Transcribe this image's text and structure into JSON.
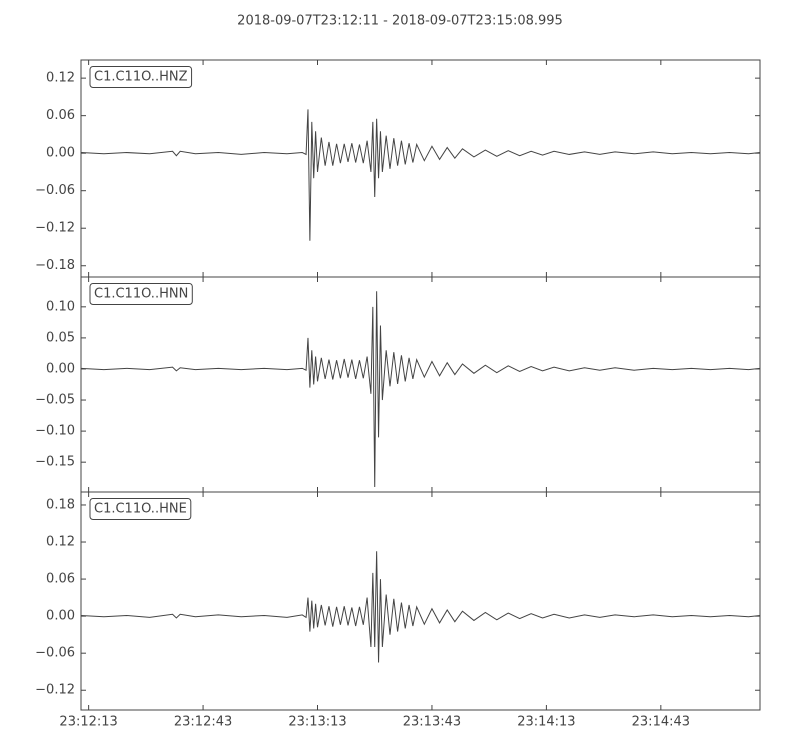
{
  "chart_data": {
    "type": "line",
    "title": "2018-09-07T23:12:11  -  2018-09-07T23:15:08.995",
    "x": [
      0,
      6,
      12,
      18,
      24,
      25,
      26,
      30,
      36,
      42,
      48,
      54,
      58,
      59,
      59.5,
      60,
      60.5,
      61,
      61.5,
      62,
      63,
      64,
      65,
      66,
      67,
      68,
      69,
      70,
      71,
      72,
      73,
      74,
      75,
      76,
      76.5,
      77,
      77.5,
      78,
      78.5,
      79,
      80,
      81,
      82,
      83,
      84,
      85,
      86,
      87,
      88,
      90,
      92,
      94,
      96,
      98,
      100,
      103,
      106,
      109,
      112,
      115,
      118,
      121,
      124,
      128,
      132,
      136,
      140,
      145,
      150,
      155,
      160,
      165,
      170,
      175,
      178
    ],
    "xlim": [
      0,
      177.995
    ],
    "xticks": [
      {
        "value": 2,
        "label": "23:12:13"
      },
      {
        "value": 32,
        "label": "23:12:43"
      },
      {
        "value": 62,
        "label": "23:13:13"
      },
      {
        "value": 92,
        "label": "23:13:43"
      },
      {
        "value": 122,
        "label": "23:14:13"
      },
      {
        "value": 152,
        "label": "23:14:43"
      }
    ],
    "panels": [
      {
        "label": "C1.C11O..HNZ",
        "color": "#444444",
        "ylim": [
          -0.198,
          0.149
        ],
        "yticks": [
          {
            "value": 0.12,
            "label": "0.12"
          },
          {
            "value": 0.06,
            "label": "0.06"
          },
          {
            "value": 0,
            "label": "0.00"
          },
          {
            "value": -0.06,
            "label": "−0.06"
          },
          {
            "value": -0.12,
            "label": "−0.12"
          },
          {
            "value": -0.18,
            "label": "−0.18"
          }
        ],
        "values": [
          0.001,
          -0.001,
          0.001,
          -0.001,
          0.003,
          -0.004,
          0.003,
          -0.001,
          0.001,
          -0.002,
          0.001,
          -0.001,
          0.001,
          -0.002,
          0.07,
          -0.14,
          0.05,
          -0.04,
          0.035,
          -0.03,
          0.025,
          -0.02,
          0.018,
          -0.02,
          0.015,
          -0.016,
          0.015,
          -0.014,
          0.016,
          -0.015,
          0.014,
          -0.016,
          0.02,
          -0.03,
          0.05,
          -0.07,
          0.055,
          -0.04,
          0.035,
          -0.03,
          0.028,
          -0.025,
          0.024,
          -0.02,
          0.02,
          -0.018,
          0.016,
          -0.015,
          0.014,
          -0.012,
          0.011,
          -0.01,
          0.009,
          -0.008,
          0.007,
          -0.006,
          0.005,
          -0.005,
          0.004,
          -0.004,
          0.003,
          -0.003,
          0.003,
          -0.002,
          0.002,
          -0.002,
          0.002,
          -0.001,
          0.002,
          -0.001,
          0.001,
          -0.001,
          0.001,
          -0.001,
          0.001
        ]
      },
      {
        "label": "C1.C11O..HNN",
        "color": "#444444",
        "ylim": [
          -0.198,
          0.148
        ],
        "yticks": [
          {
            "value": 0.1,
            "label": "0.10"
          },
          {
            "value": 0.05,
            "label": "0.05"
          },
          {
            "value": 0,
            "label": "0.00"
          },
          {
            "value": -0.05,
            "label": "−0.05"
          },
          {
            "value": -0.1,
            "label": "−0.10"
          },
          {
            "value": -0.15,
            "label": "−0.15"
          }
        ],
        "values": [
          0.001,
          -0.001,
          0.001,
          -0.001,
          0.003,
          -0.003,
          0.002,
          -0.001,
          0.001,
          -0.001,
          0.001,
          -0.001,
          0.001,
          -0.002,
          0.05,
          -0.03,
          0.03,
          -0.025,
          0.02,
          -0.02,
          0.018,
          -0.016,
          0.015,
          -0.017,
          0.014,
          -0.015,
          0.016,
          -0.014,
          0.015,
          -0.016,
          0.014,
          -0.015,
          0.02,
          -0.04,
          0.1,
          -0.19,
          0.125,
          -0.11,
          0.07,
          -0.05,
          0.03,
          -0.028,
          0.027,
          -0.024,
          0.022,
          -0.02,
          0.018,
          -0.016,
          0.015,
          -0.013,
          0.012,
          -0.011,
          0.01,
          -0.009,
          0.008,
          -0.007,
          0.006,
          -0.006,
          0.005,
          -0.004,
          0.004,
          -0.003,
          0.003,
          -0.003,
          0.002,
          -0.002,
          0.002,
          -0.002,
          0.001,
          -0.001,
          0.001,
          -0.001,
          0.001,
          -0.001,
          0.001
        ]
      },
      {
        "label": "C1.C11O..HNE",
        "color": "#444444",
        "ylim": [
          -0.152,
          0.201
        ],
        "yticks": [
          {
            "value": 0.18,
            "label": "0.18"
          },
          {
            "value": 0.12,
            "label": "0.12"
          },
          {
            "value": 0.06,
            "label": "0.06"
          },
          {
            "value": 0,
            "label": "0.00"
          },
          {
            "value": -0.06,
            "label": "−0.06"
          },
          {
            "value": -0.12,
            "label": "−0.12"
          }
        ],
        "values": [
          0.001,
          -0.001,
          0.001,
          -0.002,
          0.003,
          -0.003,
          0.003,
          -0.001,
          0.002,
          -0.001,
          0.001,
          -0.002,
          0.002,
          -0.002,
          0.03,
          -0.025,
          0.025,
          -0.02,
          0.02,
          -0.018,
          0.018,
          -0.015,
          0.016,
          -0.017,
          0.015,
          -0.014,
          0.016,
          -0.015,
          0.014,
          -0.016,
          0.015,
          -0.014,
          0.03,
          -0.05,
          0.07,
          -0.05,
          0.105,
          -0.075,
          0.06,
          -0.05,
          0.035,
          -0.03,
          0.028,
          -0.025,
          0.022,
          -0.02,
          0.018,
          -0.016,
          0.015,
          -0.013,
          0.012,
          -0.011,
          0.01,
          -0.009,
          0.008,
          -0.007,
          0.006,
          -0.006,
          0.005,
          -0.004,
          0.004,
          -0.003,
          0.003,
          -0.003,
          0.002,
          -0.002,
          0.002,
          -0.001,
          0.002,
          -0.001,
          0.001,
          -0.001,
          0.001,
          -0.001,
          0.001
        ]
      }
    ]
  }
}
